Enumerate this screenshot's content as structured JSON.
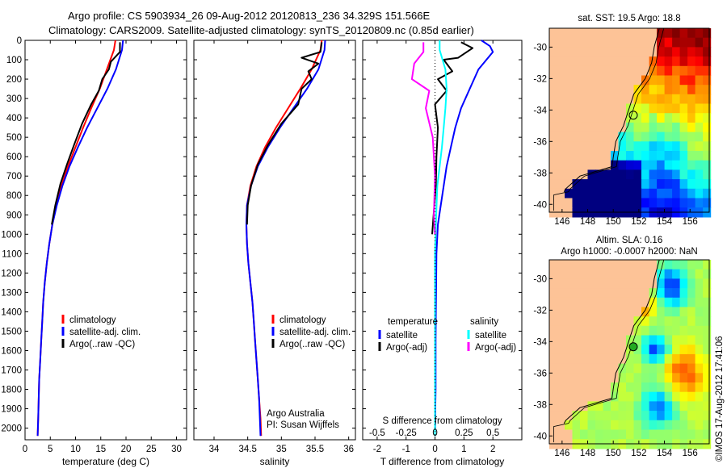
{
  "header": {
    "line1": "Argo profile: CS 5903934_26 09-Aug-2012 20120813_236 34.329S 151.566E",
    "line2": "Climatology: CARS2009. Satellite-adjusted climatology: synTS_20120809.nc (0.85d earlier)"
  },
  "colors": {
    "climatology": "#ff0000",
    "satellite": "#0000ff",
    "argo": "#000000",
    "salinity_satellite": "#00ffff",
    "salinity_argo": "#ff00ff",
    "land": "#fdc397"
  },
  "chart_data": [
    {
      "type": "line",
      "name": "temperature-profile",
      "xlabel": "temperature (deg C)",
      "ylabel": "",
      "xlim": [
        0,
        32
      ],
      "ylim": [
        2060,
        0
      ],
      "xticks": [
        0,
        5,
        10,
        15,
        20,
        25,
        30
      ],
      "yticks": [
        0,
        100,
        200,
        300,
        400,
        500,
        600,
        700,
        800,
        900,
        1000,
        1100,
        1200,
        1300,
        1400,
        1500,
        1600,
        1700,
        1800,
        1900,
        2000
      ],
      "legend": [
        "climatology",
        "satellite-adj. clim.",
        "Argo(..raw -QC)"
      ],
      "series": [
        {
          "name": "climatology",
          "color": "#ff0000",
          "x": [
            17.9,
            17.6,
            16.2,
            14.8,
            13.1,
            11.5,
            10.0,
            8.5,
            7.2,
            6.2,
            5.4,
            4.8,
            4.3,
            3.9,
            3.6,
            3.4,
            3.2,
            3.0,
            2.8,
            2.7,
            2.6,
            2.5
          ],
          "y": [
            0,
            50,
            150,
            250,
            350,
            450,
            550,
            650,
            750,
            850,
            950,
            1050,
            1150,
            1250,
            1350,
            1450,
            1550,
            1650,
            1750,
            1850,
            1950,
            2040
          ]
        },
        {
          "name": "satellite-adj. clim.",
          "color": "#0000ff",
          "x": [
            19.4,
            19.2,
            18.0,
            16.3,
            14.3,
            12.3,
            10.5,
            8.8,
            7.4,
            6.3,
            5.4,
            4.8,
            4.3,
            3.9,
            3.6,
            3.4,
            3.2,
            3.0,
            2.8,
            2.7,
            2.6,
            2.5
          ],
          "y": [
            0,
            50,
            150,
            250,
            350,
            450,
            550,
            650,
            750,
            850,
            950,
            1050,
            1150,
            1250,
            1350,
            1450,
            1550,
            1650,
            1750,
            1850,
            1950,
            2040
          ]
        },
        {
          "name": "Argo(..raw -QC)",
          "color": "#000000",
          "x": [
            18.8,
            18.8,
            17.0,
            16.6,
            15.3,
            14.6,
            13.1,
            11.3,
            9.7,
            8.3,
            7.0,
            6.0,
            5.3
          ],
          "y": [
            10,
            60,
            110,
            150,
            200,
            260,
            330,
            430,
            540,
            640,
            740,
            850,
            950
          ]
        }
      ]
    },
    {
      "type": "line",
      "name": "salinity-profile",
      "xlabel": "salinity",
      "ylabel": "",
      "xlim": [
        33.7,
        36.1
      ],
      "ylim": [
        2060,
        0
      ],
      "xticks": [
        34,
        34.5,
        35,
        35.5,
        36
      ],
      "legend": [
        "climatology",
        "satellite-adj. clim.",
        "Argo(..raw -QC)"
      ],
      "annotations": [
        "Argo Australia",
        "PI: Susan Wijffels"
      ],
      "series": [
        {
          "name": "climatology",
          "color": "#ff0000",
          "x": [
            35.6,
            35.58,
            35.45,
            35.28,
            35.1,
            34.92,
            34.76,
            34.63,
            34.54,
            34.49,
            34.48,
            34.49,
            34.51,
            34.54,
            34.57,
            34.59,
            34.61,
            34.63,
            34.65,
            34.67,
            34.69,
            34.7
          ],
          "y": [
            0,
            50,
            150,
            250,
            350,
            450,
            550,
            650,
            750,
            850,
            950,
            1050,
            1150,
            1250,
            1350,
            1450,
            1550,
            1650,
            1750,
            1850,
            1950,
            2040
          ]
        },
        {
          "name": "satellite-adj. clim.",
          "color": "#0000ff",
          "x": [
            35.65,
            35.64,
            35.55,
            35.38,
            35.18,
            34.98,
            34.8,
            34.65,
            34.55,
            34.49,
            34.48,
            34.49,
            34.51,
            34.54,
            34.57,
            34.59,
            34.61,
            34.63,
            34.65,
            34.67,
            34.68,
            34.69
          ],
          "y": [
            0,
            50,
            150,
            250,
            350,
            450,
            550,
            650,
            750,
            850,
            950,
            1050,
            1150,
            1250,
            1350,
            1450,
            1550,
            1650,
            1750,
            1850,
            1950,
            2040
          ]
        },
        {
          "name": "Argo(..raw -QC)",
          "color": "#000000",
          "x": [
            35.6,
            35.58,
            35.3,
            35.55,
            35.4,
            35.45,
            35.3,
            35.25,
            35.0,
            34.8,
            34.65,
            34.55,
            34.5,
            34.49
          ],
          "y": [
            10,
            60,
            90,
            120,
            160,
            200,
            250,
            330,
            430,
            540,
            640,
            750,
            850,
            950
          ]
        }
      ]
    },
    {
      "type": "line",
      "name": "difference-profile",
      "xlabel": "T difference from climatology",
      "top_label": "S difference from climatology",
      "xlim": [
        -2.5,
        3.0
      ],
      "ylim": [
        2060,
        0
      ],
      "xticks": [
        -2,
        -1,
        0,
        1,
        2
      ],
      "top_ticks": [
        "-0.5",
        "-0.25",
        "0",
        "0.25",
        "0.5"
      ],
      "legend_groups": [
        {
          "title": "temperature",
          "entries": [
            "satellite",
            "Argo(-adj)"
          ]
        },
        {
          "title": "salinity",
          "entries": [
            "satellite",
            "Argo(-adj)"
          ]
        }
      ],
      "series": [
        {
          "name": "temperature satellite",
          "color": "#0000ff",
          "x": [
            1.6,
            1.9,
            2.0,
            1.5,
            1.2,
            0.9,
            0.7,
            0.55,
            0.4,
            0.3,
            0.2,
            0.1,
            0.05,
            0.04,
            0.03,
            0.02,
            0.02,
            0.02,
            0.01,
            0.01,
            0.0
          ],
          "y": [
            0,
            30,
            60,
            150,
            250,
            350,
            450,
            550,
            650,
            750,
            850,
            950,
            1100,
            1250,
            1400,
            1550,
            1700,
            1800,
            1900,
            1950,
            2040
          ]
        },
        {
          "name": "temperature Argo(-adj)",
          "color": "#000000",
          "x": [
            0.9,
            1.3,
            0.8,
            0.3,
            0.6,
            0.1,
            0.4,
            0.0,
            0.1,
            0.05,
            0.03,
            -0.05,
            -0.1
          ],
          "y": [
            10,
            40,
            90,
            100,
            160,
            200,
            260,
            330,
            450,
            600,
            750,
            900,
            1000
          ]
        },
        {
          "name": "salinity satellite",
          "color": "#00ffff",
          "x": [
            0.04,
            0.04,
            0.09,
            0.1,
            0.09,
            0.075,
            0.06,
            0.04,
            0.02,
            0.01,
            0.0,
            0.0
          ],
          "y": [
            0,
            50,
            150,
            250,
            350,
            450,
            550,
            650,
            750,
            900,
            1100,
            2040
          ]
        },
        {
          "name": "salinity Argo(-adj)",
          "color": "#ff00ff",
          "x": [
            -0.1,
            -0.1,
            -0.18,
            -0.2,
            -0.05,
            -0.08,
            -0.02,
            0.0,
            -0.01,
            0.0
          ],
          "y": [
            10,
            60,
            120,
            200,
            260,
            350,
            500,
            700,
            900,
            1000
          ]
        }
      ]
    },
    {
      "type": "heatmap",
      "name": "sst-map",
      "title": "sat. SST: 19.5 Argo: 18.8",
      "xlim": [
        145,
        157.5
      ],
      "ylim": [
        -40.5,
        -28.8
      ],
      "xticks": [
        146,
        148,
        150,
        152,
        154,
        156
      ],
      "yticks": [
        -30,
        -32,
        -34,
        -36,
        -38,
        -40
      ],
      "argo_position": [
        151.566,
        -34.329
      ]
    },
    {
      "type": "heatmap",
      "name": "sla-map",
      "title": "Altim. SLA: 0.16",
      "subtitle": "Argo h1000: -0.0007 h2000: NaN",
      "xlim": [
        145,
        157.5
      ],
      "ylim": [
        -40.5,
        -28.8
      ],
      "xticks": [
        146,
        148,
        150,
        152,
        154,
        156
      ],
      "yticks": [
        -30,
        -32,
        -34,
        -36,
        -38,
        -40
      ],
      "argo_position": [
        151.566,
        -34.329
      ]
    }
  ],
  "footer": {
    "stamp": "©IMOS 17-Aug-2012 17:41:06"
  }
}
